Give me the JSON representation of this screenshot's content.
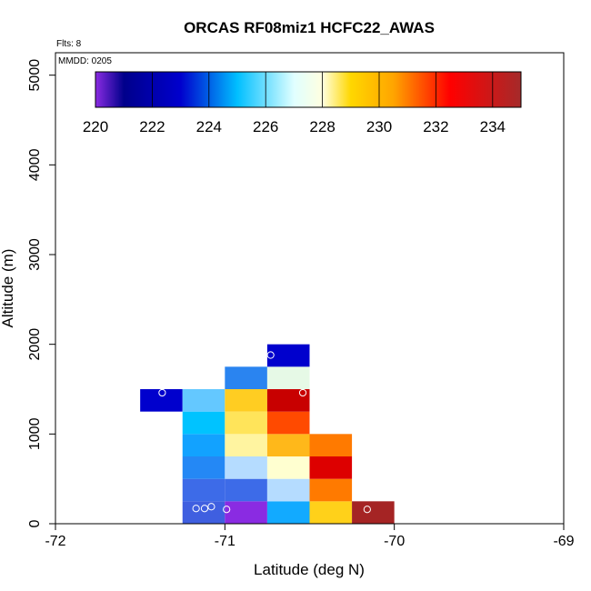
{
  "chart_data": {
    "type": "heatmap",
    "title": "ORCAS RF08miz1 HCFC22_AWAS",
    "flts_note": "Flts: 8",
    "date_note": "MMDD: 0205",
    "xlabel": "Latitude (deg N)",
    "ylabel": "Altitude (m)",
    "xlim": [
      -72,
      -69
    ],
    "ylim": [
      0,
      5250
    ],
    "x_ticks": [
      -72,
      -71,
      -70,
      -69
    ],
    "y_ticks": [
      0,
      1000,
      2000,
      3000,
      4000,
      5000
    ],
    "colorbar": {
      "min": 220,
      "max": 235,
      "ticks": [
        220,
        222,
        224,
        226,
        228,
        230,
        232,
        234
      ],
      "placement": "top",
      "stops": [
        {
          "v": 220.0,
          "color": "#8a2be2"
        },
        {
          "v": 221.0,
          "color": "#00008b"
        },
        {
          "v": 223.0,
          "color": "#0000cd"
        },
        {
          "v": 225.0,
          "color": "#00bfff"
        },
        {
          "v": 227.0,
          "color": "#e0ffff"
        },
        {
          "v": 228.0,
          "color": "#ffffe0"
        },
        {
          "v": 229.0,
          "color": "#ffd700"
        },
        {
          "v": 230.5,
          "color": "#ffa500"
        },
        {
          "v": 232.5,
          "color": "#ff0000"
        },
        {
          "v": 235.0,
          "color": "#a52a2a"
        }
      ]
    },
    "cell_width_deg": 0.25,
    "cell_height_m": 250,
    "cells": [
      {
        "lat0": -71.25,
        "alt0": 0,
        "color": "#3f5fe0"
      },
      {
        "lat0": -71.0,
        "alt0": 0,
        "color": "#8a2be2"
      },
      {
        "lat0": -70.75,
        "alt0": 0,
        "color": "#12aaff"
      },
      {
        "lat0": -70.5,
        "alt0": 0,
        "color": "#ffd11a"
      },
      {
        "lat0": -70.25,
        "alt0": 0,
        "color": "#a52424"
      },
      {
        "lat0": -71.25,
        "alt0": 250,
        "color": "#3d6be8"
      },
      {
        "lat0": -71.0,
        "alt0": 250,
        "color": "#3d6be8"
      },
      {
        "lat0": -70.75,
        "alt0": 250,
        "color": "#b5dcff"
      },
      {
        "lat0": -70.5,
        "alt0": 250,
        "color": "#ff7a00"
      },
      {
        "lat0": -71.25,
        "alt0": 500,
        "color": "#2488f5"
      },
      {
        "lat0": -71.0,
        "alt0": 500,
        "color": "#b5dcff"
      },
      {
        "lat0": -70.75,
        "alt0": 500,
        "color": "#ffffd0"
      },
      {
        "lat0": -70.5,
        "alt0": 500,
        "color": "#dd0000"
      },
      {
        "lat0": -71.25,
        "alt0": 750,
        "color": "#12a2ff"
      },
      {
        "lat0": -71.0,
        "alt0": 750,
        "color": "#fff4a0"
      },
      {
        "lat0": -70.75,
        "alt0": 750,
        "color": "#ffb81a"
      },
      {
        "lat0": -70.5,
        "alt0": 750,
        "color": "#ff7a00"
      },
      {
        "lat0": -71.25,
        "alt0": 1000,
        "color": "#00c3ff"
      },
      {
        "lat0": -71.0,
        "alt0": 1000,
        "color": "#ffe45a"
      },
      {
        "lat0": -70.75,
        "alt0": 1000,
        "color": "#ff4a00"
      },
      {
        "lat0": -71.5,
        "alt0": 1250,
        "color": "#0000cd"
      },
      {
        "lat0": -71.25,
        "alt0": 1250,
        "color": "#64c8ff"
      },
      {
        "lat0": -71.0,
        "alt0": 1250,
        "color": "#ffcd22"
      },
      {
        "lat0": -70.75,
        "alt0": 1250,
        "color": "#c80000"
      },
      {
        "lat0": -71.0,
        "alt0": 1500,
        "color": "#2a84f0"
      },
      {
        "lat0": -70.75,
        "alt0": 1500,
        "color": "#e6f9e6"
      },
      {
        "lat0": -70.75,
        "alt0": 1750,
        "color": "#0000cd"
      }
    ],
    "points": [
      {
        "lat": -71.37,
        "alt": 1460
      },
      {
        "lat": -70.54,
        "alt": 1460
      },
      {
        "lat": -70.73,
        "alt": 1880
      },
      {
        "lat": -71.17,
        "alt": 170
      },
      {
        "lat": -71.12,
        "alt": 170
      },
      {
        "lat": -71.08,
        "alt": 190
      },
      {
        "lat": -70.99,
        "alt": 160
      },
      {
        "lat": -70.16,
        "alt": 160
      }
    ]
  }
}
